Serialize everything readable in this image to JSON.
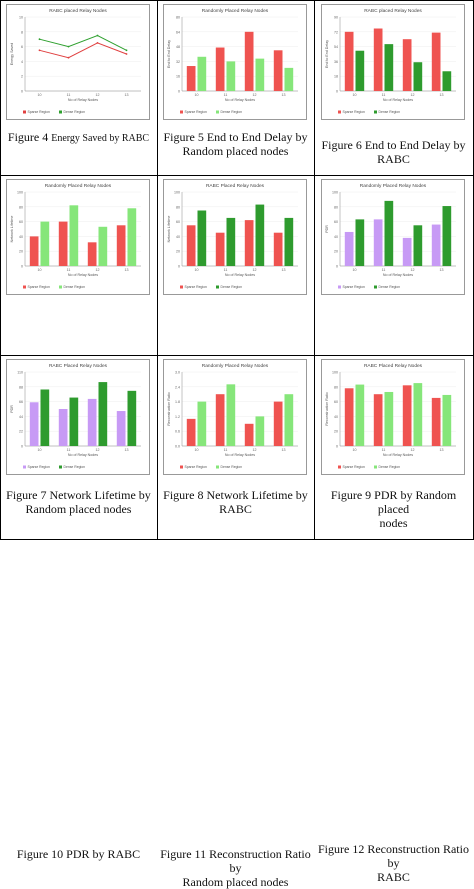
{
  "colors": {
    "a": "#ef5350",
    "b": "#86e67a",
    "c": "#2e9b2e",
    "d": "#c79af5",
    "green_line": "#2ea02e",
    "red_line": "#e04040"
  },
  "cells": [
    {
      "caption_lines": [
        {
          "text": "Figure 4 ",
          "cls": ""
        },
        {
          "text": "Energy Saved by RABC",
          "cls": "small"
        }
      ],
      "chart_data": {
        "type": "line",
        "title": "RABC placed Relay Nodes",
        "xlabel": "No of Relay Nodes",
        "ylabel": "Energy Saved",
        "categories": [
          "10",
          "11",
          "12",
          "13"
        ],
        "ylim": [
          0,
          10
        ],
        "series": [
          {
            "name": "Sparse Region",
            "color": "#e04040",
            "values": [
              5.5,
              4.5,
              6.5,
              5.0
            ]
          },
          {
            "name": "Dense Region",
            "color": "#2ea02e",
            "values": [
              7.0,
              6.0,
              7.5,
              5.5
            ]
          }
        ]
      }
    },
    {
      "caption_lines": [
        {
          "text": "Figure 5 End to End Delay by",
          "cls": ""
        },
        {
          "text": "Random placed nodes",
          "cls": ""
        }
      ],
      "chart_data": {
        "type": "bar",
        "title": "Randomly Placed Relay Nodes",
        "xlabel": "No of Relay Nodes",
        "ylabel": "End to End Delay",
        "categories": [
          "10",
          "11",
          "12",
          "13"
        ],
        "ylim": [
          0,
          80
        ],
        "series": [
          {
            "name": "Sparse Region",
            "color": "#ef5350",
            "values": [
              27,
              47,
              64,
              44
            ]
          },
          {
            "name": "Dense Region",
            "color": "#86e67a",
            "values": [
              37,
              32,
              35,
              25
            ]
          }
        ]
      }
    },
    {
      "caption_lines": [
        {
          "text": "Figure 6 End to End Delay by",
          "cls": ""
        },
        {
          "text": "RABC",
          "cls": ""
        }
      ],
      "chart_data": {
        "type": "bar",
        "title": "RABC placed Relay Nodes",
        "xlabel": "No of Relay Nodes",
        "ylabel": "End to End Delay",
        "categories": [
          "10",
          "11",
          "12",
          "13"
        ],
        "ylim": [
          0,
          90
        ],
        "series": [
          {
            "name": "Sparse Region",
            "color": "#ef5350",
            "values": [
              72,
              76,
              63,
              71
            ]
          },
          {
            "name": "Dense Region",
            "color": "#2e9b2e",
            "values": [
              49,
              57,
              35,
              24
            ]
          }
        ]
      }
    },
    {
      "caption_lines": [
        {
          "text": "Figure 7 Network Lifetime by",
          "cls": ""
        },
        {
          "text": "Random placed nodes",
          "cls": ""
        }
      ],
      "chart_data": {
        "type": "bar",
        "title": "Randomly Placed Relay Nodes",
        "xlabel": "No of Relay Nodes",
        "ylabel": "Network Lifetime",
        "categories": [
          "10",
          "11",
          "12",
          "13"
        ],
        "ylim": [
          0,
          100
        ],
        "series": [
          {
            "name": "Sparse Region",
            "color": "#ef5350",
            "values": [
              40,
              60,
              32,
              55
            ]
          },
          {
            "name": "Dense Region",
            "color": "#86e67a",
            "values": [
              60,
              82,
              53,
              78
            ]
          }
        ]
      }
    },
    {
      "caption_lines": [
        {
          "text": "Figure 8 Network Lifetime by",
          "cls": ""
        },
        {
          "text": "RABC",
          "cls": ""
        }
      ],
      "chart_data": {
        "type": "bar",
        "title": "RABC Placed Relay Nodes",
        "xlabel": "No of Relay Nodes",
        "ylabel": "Network Lifetime",
        "categories": [
          "10",
          "11",
          "12",
          "13"
        ],
        "ylim": [
          0,
          100
        ],
        "series": [
          {
            "name": "Sparse Region",
            "color": "#ef5350",
            "values": [
              55,
              45,
              62,
              45
            ]
          },
          {
            "name": "Dense Region",
            "color": "#2e9b2e",
            "values": [
              75,
              65,
              83,
              65
            ]
          }
        ]
      }
    },
    {
      "caption_lines": [
        {
          "text": "Figure 9 PDR by Random placed",
          "cls": ""
        },
        {
          "text": "nodes",
          "cls": ""
        }
      ],
      "chart_data": {
        "type": "bar",
        "title": "Randomly Placed Relay Nodes",
        "xlabel": "No of Relay Nodes",
        "ylabel": "PDR",
        "categories": [
          "10",
          "11",
          "12",
          "13"
        ],
        "ylim": [
          0,
          100
        ],
        "series": [
          {
            "name": "Sparse Region",
            "color": "#c79af5",
            "values": [
              46,
              63,
              38,
              56
            ]
          },
          {
            "name": "Dense Region",
            "color": "#2e9b2e",
            "values": [
              63,
              88,
              55,
              81
            ]
          }
        ]
      }
    },
    {
      "caption_lines": [
        {
          "text": "Figure 10 PDR by RABC",
          "cls": ""
        }
      ],
      "chart_data": {
        "type": "bar",
        "title": "RABC Placed Relay Nodes",
        "xlabel": "No of Relay Nodes",
        "ylabel": "PDR",
        "categories": [
          "10",
          "11",
          "12",
          "13"
        ],
        "ylim": [
          0,
          110
        ],
        "series": [
          {
            "name": "Sparse Region",
            "color": "#c79af5",
            "values": [
              65,
              55,
              70,
              52
            ]
          },
          {
            "name": "Dense Region",
            "color": "#2e9b2e",
            "values": [
              84,
              72,
              95,
              82
            ]
          }
        ]
      }
    },
    {
      "caption_lines": [
        {
          "text": "Figure 11 Reconstruction Ratio by",
          "cls": ""
        },
        {
          "text": "Random placed nodes",
          "cls": ""
        }
      ],
      "chart_data": {
        "type": "bar",
        "title": "Randomly Placed Relay Nodes",
        "xlabel": "No of Relay Nodes",
        "ylabel": "Reconstruction Ratio",
        "categories": [
          "10",
          "11",
          "12",
          "13"
        ],
        "ylim": [
          0,
          3.0
        ],
        "series": [
          {
            "name": "Sparse Region",
            "color": "#ef5350",
            "values": [
              1.1,
              2.1,
              0.9,
              1.8
            ]
          },
          {
            "name": "Dense Region",
            "color": "#86e67a",
            "values": [
              1.8,
              2.5,
              1.2,
              2.1
            ]
          }
        ]
      }
    },
    {
      "caption_lines": [
        {
          "text": "Figure 12 Reconstruction Ratio by",
          "cls": ""
        },
        {
          "text": "RABC",
          "cls": ""
        }
      ],
      "chart_data": {
        "type": "bar",
        "title": "RABC Placed Relay Nodes",
        "xlabel": "No of Relay Nodes",
        "ylabel": "Reconstruction Ratio",
        "categories": [
          "10",
          "11",
          "12",
          "13"
        ],
        "ylim": [
          0,
          100
        ],
        "series": [
          {
            "name": "Sparse Region",
            "color": "#ef5350",
            "values": [
              78,
              70,
              82,
              65
            ]
          },
          {
            "name": "Dense Region",
            "color": "#86e67a",
            "values": [
              83,
              73,
              85,
              69
            ]
          }
        ]
      }
    }
  ]
}
